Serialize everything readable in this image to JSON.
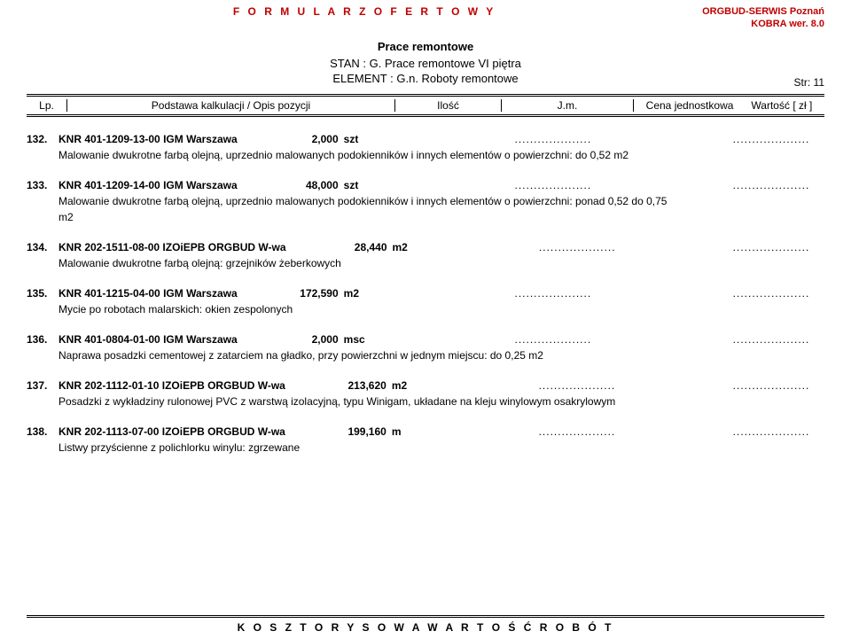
{
  "header": {
    "title_letterspaced": "F O R M U L A R Z   O F E R T O W Y",
    "org_line1": "ORGBUD-SERWIS Poznań",
    "org_line2": "KOBRA wer. 8.0"
  },
  "title_block": {
    "main": "Prace remontowe",
    "stan_label": "STAN :",
    "stan_value": "G.  Prace remontowe VI piętra",
    "element_label": "ELEMENT :",
    "element_value": "G.n.  Roboty remontowe",
    "page": "Str: 11"
  },
  "columns": {
    "lp": "Lp.",
    "basis": "Podstawa kalkulacji   /   Opis pozycji",
    "qty": "Ilość",
    "unit": "J.m.",
    "price": "Cena jednostkowa",
    "value": "Wartość [ zł ]"
  },
  "dots": "....................",
  "items": [
    {
      "num": "132.",
      "code": "KNR  401-1209-13-00  IGM Warszawa",
      "qty": "2,000",
      "unit": "szt",
      "desc": "Malowanie dwukrotne farbą olejną, uprzednio malowanych podokienników i innych elementów o powierzchni: do 0,52 m2"
    },
    {
      "num": "133.",
      "code": "KNR  401-1209-14-00  IGM Warszawa",
      "qty": "48,000",
      "unit": "szt",
      "desc": "Malowanie dwukrotne farbą olejną, uprzednio malowanych podokienników i innych elementów o powierzchni: ponad 0,52 do 0,75 m2"
    },
    {
      "num": "134.",
      "code": "KNR  202-1511-08-00  IZOiEPB ORGBUD W-wa",
      "qty": "28,440",
      "unit": "m2",
      "desc": "Malowanie dwukrotne farbą olejną: grzejników żeberkowych"
    },
    {
      "num": "135.",
      "code": "KNR  401-1215-04-00  IGM Warszawa",
      "qty": "172,590",
      "unit": "m2",
      "desc": "Mycie po robotach malarskich: okien zespolonych"
    },
    {
      "num": "136.",
      "code": "KNR  401-0804-01-00  IGM Warszawa",
      "qty": "2,000",
      "unit": "msc",
      "desc": "Naprawa posadzki cementowej z zatarciem na gładko, przy powierzchni w jednym miejscu: do 0,25 m2"
    },
    {
      "num": "137.",
      "code": "KNR  202-1112-01-10  IZOiEPB ORGBUD W-wa",
      "qty": "213,620",
      "unit": "m2",
      "desc": "Posadzki z wykładziny rulonowej PVC z warstwą izolacyjną, typu Winigam, układane na kleju winylowym osakrylowym"
    },
    {
      "num": "138.",
      "code": "KNR  202-1113-07-00  IZOiEPB ORGBUD W-wa",
      "qty": "199,160",
      "unit": "m",
      "desc": "Listwy przyścienne z polichlorku winylu: zgrzewane"
    }
  ],
  "footer": "K O S Z T O R Y S O W A    W A R T O Ś Ć    R O B Ó T"
}
